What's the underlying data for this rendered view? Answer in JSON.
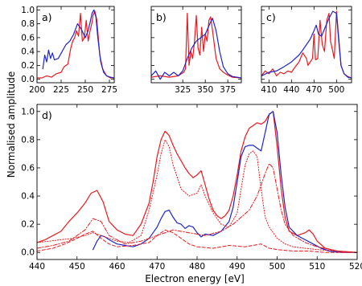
{
  "colors": {
    "red": "#e8191f",
    "blue": "#1f24c8"
  },
  "ylabel": "Normalised amplitude",
  "xlabel": "Electron energy [eV]",
  "chart_data": [
    {
      "id": "a",
      "type": "line",
      "label": "a)",
      "xlim": [
        200,
        280
      ],
      "ylim": [
        -0.05,
        1.05
      ],
      "xticks": [
        "200",
        "225",
        "250",
        "275"
      ],
      "yticks": [
        "0.0",
        "0.2",
        "0.4",
        "0.6",
        "0.8",
        "1.0"
      ],
      "xtick_values": [
        200,
        225,
        250,
        275
      ],
      "ytick_values": [
        0,
        0.2,
        0.4,
        0.6,
        0.8,
        1.0
      ],
      "series": [
        {
          "color": "red",
          "style": "solid",
          "x": [
            200,
            205,
            210,
            215,
            220,
            225,
            228,
            232,
            235,
            237,
            239,
            241,
            243,
            245,
            247,
            249,
            251,
            253,
            255,
            257,
            258,
            260,
            262,
            265,
            268,
            272,
            276,
            280
          ],
          "y": [
            0.02,
            0.02,
            0.05,
            0.03,
            0.08,
            0.1,
            0.18,
            0.22,
            0.45,
            0.55,
            0.6,
            0.7,
            0.62,
            0.95,
            0.55,
            0.6,
            0.85,
            0.55,
            0.7,
            0.82,
            0.92,
            0.98,
            0.85,
            0.35,
            0.15,
            0.05,
            0.02,
            0.02
          ]
        },
        {
          "color": "blue",
          "style": "solid",
          "x": [
            206,
            208,
            210,
            212,
            214,
            216,
            218,
            222,
            226,
            230,
            234,
            238,
            242,
            246,
            250,
            253,
            255,
            257,
            259,
            261,
            263,
            266,
            269,
            272,
            276,
            280
          ],
          "y": [
            0.15,
            0.35,
            0.25,
            0.42,
            0.3,
            0.38,
            0.28,
            0.3,
            0.4,
            0.5,
            0.55,
            0.65,
            0.8,
            0.72,
            0.6,
            0.7,
            0.82,
            0.95,
            1.0,
            0.9,
            0.6,
            0.25,
            0.1,
            0.05,
            0.03,
            0.02
          ]
        }
      ]
    },
    {
      "id": "b",
      "type": "line",
      "label": "b)",
      "xlim": [
        290,
        390
      ],
      "ylim": [
        -0.05,
        1.05
      ],
      "xticks": [
        "325",
        "350",
        "375"
      ],
      "yticks": [],
      "xtick_values": [
        325,
        350,
        375
      ],
      "ytick_values": [
        0,
        0.2,
        0.4,
        0.6,
        0.8,
        1.0
      ],
      "series": [
        {
          "color": "red",
          "style": "solid",
          "x": [
            290,
            300,
            310,
            320,
            326,
            328,
            330,
            332,
            334,
            336,
            338,
            340,
            342,
            344,
            346,
            348,
            350,
            352,
            354,
            356,
            358,
            362,
            366,
            370,
            375,
            380,
            390
          ],
          "y": [
            0.03,
            0.05,
            0.03,
            0.05,
            0.1,
            0.15,
            0.95,
            0.2,
            0.4,
            0.3,
            0.55,
            0.92,
            0.45,
            0.35,
            0.75,
            0.4,
            0.65,
            0.55,
            0.85,
            0.9,
            0.7,
            0.3,
            0.15,
            0.1,
            0.06,
            0.03,
            0.02
          ]
        },
        {
          "color": "blue",
          "style": "solid",
          "x": [
            290,
            295,
            300,
            305,
            310,
            315,
            320,
            325,
            330,
            335,
            340,
            345,
            350,
            355,
            358,
            362,
            366,
            370,
            375,
            380,
            390
          ],
          "y": [
            0.05,
            0.12,
            0.0,
            0.1,
            0.05,
            0.1,
            0.05,
            0.12,
            0.3,
            0.45,
            0.55,
            0.6,
            0.65,
            0.8,
            0.88,
            0.7,
            0.4,
            0.18,
            0.08,
            0.04,
            0.02
          ]
        }
      ]
    },
    {
      "id": "c",
      "type": "line",
      "label": "c)",
      "xlim": [
        400,
        520
      ],
      "ylim": [
        -0.05,
        1.05
      ],
      "xticks": [
        "410",
        "440",
        "470",
        "500"
      ],
      "yticks": [],
      "xtick_values": [
        410,
        440,
        470,
        500
      ],
      "ytick_values": [
        0,
        0.2,
        0.4,
        0.6,
        0.8,
        1.0
      ],
      "series": [
        {
          "color": "red",
          "style": "solid",
          "x": [
            400,
            405,
            410,
            415,
            420,
            425,
            430,
            435,
            440,
            445,
            450,
            455,
            460,
            462,
            465,
            468,
            470,
            472,
            475,
            478,
            481,
            484,
            487,
            490,
            492,
            495,
            497,
            500,
            503,
            506,
            510,
            515,
            520
          ],
          "y": [
            0.05,
            0.12,
            0.08,
            0.15,
            0.05,
            0.1,
            0.08,
            0.12,
            0.1,
            0.18,
            0.25,
            0.38,
            0.3,
            0.2,
            0.25,
            0.3,
            0.65,
            0.28,
            0.3,
            0.85,
            0.5,
            0.4,
            0.85,
            0.95,
            0.55,
            0.4,
            0.3,
            0.98,
            0.6,
            0.2,
            0.08,
            0.04,
            0.02
          ]
        },
        {
          "color": "blue",
          "style": "solid",
          "x": [
            400,
            410,
            420,
            430,
            440,
            450,
            455,
            460,
            465,
            470,
            473,
            476,
            480,
            485,
            490,
            495,
            500,
            503,
            506,
            510,
            515,
            520
          ],
          "y": [
            0.05,
            0.1,
            0.12,
            0.18,
            0.25,
            0.35,
            0.42,
            0.5,
            0.58,
            0.7,
            0.78,
            0.65,
            0.62,
            0.75,
            0.88,
            0.98,
            0.95,
            0.55,
            0.2,
            0.08,
            0.03,
            0.02
          ]
        }
      ]
    },
    {
      "id": "d",
      "type": "line",
      "label": "d)",
      "xlim": [
        440,
        520
      ],
      "ylim": [
        -0.05,
        1.05
      ],
      "xticks": [
        "440",
        "450",
        "460",
        "470",
        "480",
        "490",
        "500",
        "510",
        "520"
      ],
      "yticks": [
        "0.0",
        "0.2",
        "0.4",
        "0.6",
        "0.8",
        "1.0"
      ],
      "xtick_values": [
        440,
        450,
        460,
        470,
        480,
        490,
        500,
        510,
        520
      ],
      "ytick_values": [
        0,
        0.2,
        0.4,
        0.6,
        0.8,
        1.0
      ],
      "series": [
        {
          "color": "red",
          "style": "solid",
          "x": [
            440,
            442,
            444,
            446,
            448,
            450,
            452,
            453.5,
            455,
            456.5,
            458,
            460,
            462,
            464,
            466,
            468,
            469,
            470,
            471,
            472,
            473,
            474,
            475,
            476,
            477,
            478,
            479,
            480,
            481,
            482,
            483,
            484,
            485,
            486,
            487,
            488,
            489,
            490,
            491,
            492,
            493,
            494,
            495,
            496,
            497,
            498,
            499,
            500,
            501,
            502,
            503,
            505,
            507,
            508,
            509,
            510,
            512,
            515,
            520
          ],
          "y": [
            0.07,
            0.09,
            0.12,
            0.15,
            0.22,
            0.28,
            0.35,
            0.42,
            0.44,
            0.36,
            0.22,
            0.16,
            0.13,
            0.12,
            0.2,
            0.35,
            0.5,
            0.68,
            0.8,
            0.86,
            0.83,
            0.76,
            0.7,
            0.65,
            0.6,
            0.56,
            0.53,
            0.55,
            0.58,
            0.48,
            0.38,
            0.3,
            0.26,
            0.24,
            0.26,
            0.3,
            0.4,
            0.55,
            0.72,
            0.82,
            0.88,
            0.9,
            0.92,
            0.91,
            0.93,
            0.98,
            1.0,
            0.75,
            0.45,
            0.25,
            0.15,
            0.12,
            0.14,
            0.16,
            0.13,
            0.08,
            0.03,
            0.01,
            0.0
          ]
        },
        {
          "color": "blue",
          "style": "solid",
          "x": [
            454,
            455,
            456,
            457,
            458,
            460,
            462,
            464,
            466,
            468,
            469,
            470,
            471,
            472,
            473,
            474,
            475,
            476,
            477,
            478,
            479,
            480,
            481,
            482,
            484,
            486,
            488,
            489,
            490,
            491,
            492,
            493,
            494,
            495,
            496,
            497,
            498,
            499,
            500,
            501,
            502,
            503,
            505,
            507,
            509,
            511,
            513,
            516,
            520
          ],
          "y": [
            0.02,
            0.08,
            0.12,
            0.11,
            0.09,
            0.06,
            0.05,
            0.04,
            0.06,
            0.1,
            0.14,
            0.18,
            0.24,
            0.29,
            0.3,
            0.25,
            0.21,
            0.2,
            0.17,
            0.19,
            0.18,
            0.14,
            0.11,
            0.13,
            0.12,
            0.15,
            0.22,
            0.32,
            0.5,
            0.68,
            0.75,
            0.76,
            0.76,
            0.74,
            0.72,
            0.85,
            0.98,
            1.0,
            0.85,
            0.55,
            0.32,
            0.18,
            0.12,
            0.09,
            0.06,
            0.03,
            0.01,
            0.0,
            0.0
          ]
        },
        {
          "color": "red",
          "style": "dotted",
          "x": [
            440,
            443,
            446,
            449,
            452,
            454,
            456,
            458,
            460,
            463,
            466,
            468,
            470,
            471,
            472,
            473,
            474,
            476,
            478,
            480,
            481,
            482,
            484,
            486,
            488,
            490,
            491,
            492,
            493,
            494,
            495,
            496,
            497,
            498,
            500,
            502,
            504,
            507,
            510,
            515,
            520
          ],
          "y": [
            0.07,
            0.08,
            0.09,
            0.1,
            0.12,
            0.14,
            0.12,
            0.1,
            0.08,
            0.07,
            0.12,
            0.3,
            0.55,
            0.7,
            0.8,
            0.75,
            0.62,
            0.45,
            0.4,
            0.42,
            0.48,
            0.4,
            0.28,
            0.2,
            0.18,
            0.28,
            0.45,
            0.62,
            0.7,
            0.72,
            0.68,
            0.45,
            0.25,
            0.18,
            0.1,
            0.06,
            0.04,
            0.03,
            0.02,
            0.01,
            0.0
          ]
        },
        {
          "color": "red",
          "style": "dashdot",
          "x": [
            440,
            444,
            448,
            452,
            454,
            456,
            458,
            462,
            466,
            470,
            474,
            478,
            482,
            486,
            489,
            491,
            493,
            494,
            495,
            496,
            497,
            498,
            499,
            500,
            501,
            502,
            504,
            507,
            510,
            515,
            520
          ],
          "y": [
            0.03,
            0.05,
            0.08,
            0.16,
            0.24,
            0.22,
            0.12,
            0.06,
            0.08,
            0.12,
            0.16,
            0.14,
            0.12,
            0.15,
            0.2,
            0.25,
            0.3,
            0.35,
            0.4,
            0.48,
            0.56,
            0.63,
            0.6,
            0.45,
            0.3,
            0.2,
            0.12,
            0.07,
            0.04,
            0.01,
            0.0
          ]
        },
        {
          "color": "red",
          "style": "dashed",
          "x": [
            440,
            444,
            447,
            450,
            452,
            454,
            456,
            458,
            460,
            464,
            468,
            470,
            472,
            474,
            476,
            478,
            480,
            484,
            488,
            492,
            496,
            498,
            500,
            504,
            508,
            512,
            520
          ],
          "y": [
            0.01,
            0.03,
            0.06,
            0.1,
            0.13,
            0.15,
            0.1,
            0.06,
            0.04,
            0.05,
            0.07,
            0.12,
            0.16,
            0.14,
            0.1,
            0.06,
            0.04,
            0.03,
            0.05,
            0.04,
            0.06,
            0.03,
            0.02,
            0.01,
            0.01,
            0.0,
            0.0
          ]
        }
      ]
    }
  ]
}
